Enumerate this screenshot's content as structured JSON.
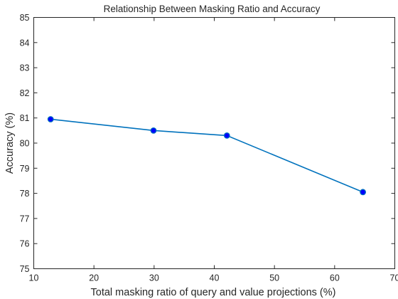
{
  "chart_data": {
    "type": "line",
    "title": "Relationship Between Masking Ratio and Accuracy",
    "xlabel": "Total masking ratio of query and value projections (%)",
    "ylabel": "Accuracy (%)",
    "xlim": [
      10,
      70
    ],
    "ylim": [
      75,
      85
    ],
    "xticks": [
      10,
      20,
      30,
      40,
      50,
      60,
      70
    ],
    "yticks": [
      75,
      76,
      77,
      78,
      79,
      80,
      81,
      82,
      83,
      84,
      85
    ],
    "grid": false,
    "series": [
      {
        "x": [
          12.8,
          29.9,
          42.1,
          64.7
        ],
        "y": [
          80.95,
          80.5,
          80.3,
          78.05
        ],
        "color": "#0072BD",
        "marker": "circle",
        "marker_color": "#0000FF"
      }
    ]
  }
}
